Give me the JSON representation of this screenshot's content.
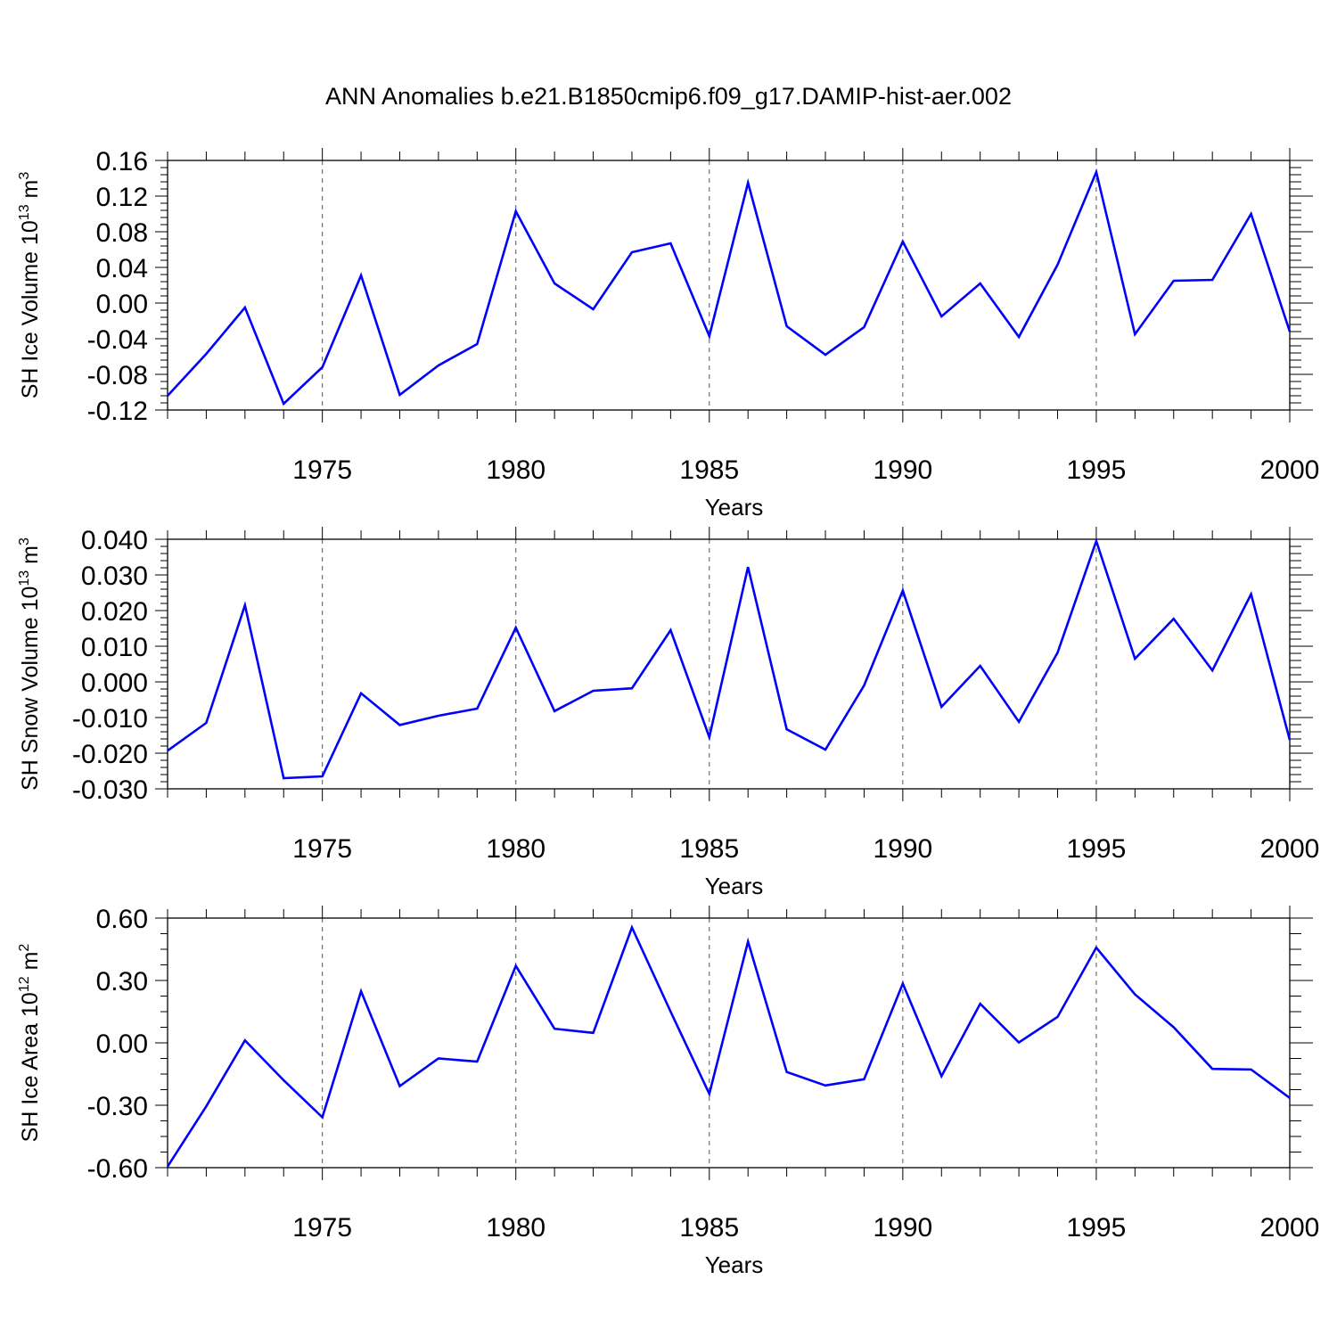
{
  "title": "ANN Anomalies b.e21.B1850cmip6.f09_g17.DAMIP-hist-aer.002",
  "colors": {
    "line": "#0000ff",
    "axis": "#000000",
    "grid": "#555555"
  },
  "chart_data": [
    {
      "type": "line",
      "ylabel": {
        "main": "SH Ice Volume 10",
        "sup": "13",
        "unit": " m",
        "unit_sup": "3"
      },
      "xlabel": "Years",
      "xlim": [
        1971,
        2000
      ],
      "ylim": [
        -0.12,
        0.16
      ],
      "yticks": [
        -0.12,
        -0.08,
        -0.04,
        0.0,
        0.04,
        0.08,
        0.12,
        0.16
      ],
      "yticklabels": [
        "-0.12",
        "-0.08",
        "-0.04",
        "0.00",
        "0.04",
        "0.08",
        "0.12",
        "0.16"
      ],
      "xticks": [
        1975,
        1980,
        1985,
        1990,
        1995,
        2000
      ],
      "xticklabels": [
        "1975",
        "1980",
        "1985",
        "1990",
        "1995",
        "2000"
      ],
      "x": [
        1971,
        1972,
        1973,
        1974,
        1975,
        1976,
        1977,
        1978,
        1979,
        1980,
        1981,
        1982,
        1983,
        1984,
        1985,
        1986,
        1987,
        1988,
        1989,
        1990,
        1991,
        1992,
        1993,
        1994,
        1995,
        1996,
        1997,
        1998,
        1999,
        2000
      ],
      "series": [
        {
          "name": "SH Ice Volume",
          "values": [
            -0.104,
            -0.057,
            -0.005,
            -0.113,
            -0.072,
            0.031,
            -0.103,
            -0.07,
            -0.046,
            0.103,
            0.022,
            -0.007,
            0.057,
            0.067,
            -0.037,
            0.135,
            -0.026,
            -0.058,
            -0.027,
            0.069,
            -0.015,
            0.022,
            -0.038,
            0.043,
            0.147,
            -0.035,
            0.025,
            0.026,
            0.1,
            -0.032
          ]
        }
      ]
    },
    {
      "type": "line",
      "ylabel": {
        "main": "SH Snow Volume 10",
        "sup": "13",
        "unit": " m",
        "unit_sup": "3"
      },
      "xlabel": "Years",
      "xlim": [
        1971,
        2000
      ],
      "ylim": [
        -0.03,
        0.04
      ],
      "yticks": [
        -0.03,
        -0.02,
        -0.01,
        0.0,
        0.01,
        0.02,
        0.03,
        0.04
      ],
      "yticklabels": [
        "-0.030",
        "-0.020",
        "-0.010",
        "0.000",
        "0.010",
        "0.020",
        "0.030",
        "0.040"
      ],
      "xticks": [
        1975,
        1980,
        1985,
        1990,
        1995,
        2000
      ],
      "xticklabels": [
        "1975",
        "1980",
        "1985",
        "1990",
        "1995",
        "2000"
      ],
      "x": [
        1971,
        1972,
        1973,
        1974,
        1975,
        1976,
        1977,
        1978,
        1979,
        1980,
        1981,
        1982,
        1983,
        1984,
        1985,
        1986,
        1987,
        1988,
        1989,
        1990,
        1991,
        1992,
        1993,
        1994,
        1995,
        1996,
        1997,
        1998,
        1999,
        2000
      ],
      "series": [
        {
          "name": "SH Snow Volume",
          "values": [
            -0.0193,
            -0.0115,
            0.0215,
            -0.027,
            -0.0265,
            -0.0032,
            -0.0121,
            -0.0095,
            -0.0075,
            0.0152,
            -0.0082,
            -0.0025,
            -0.0018,
            0.0145,
            -0.0155,
            0.0322,
            -0.0133,
            -0.019,
            -0.001,
            0.0256,
            -0.007,
            0.0045,
            -0.0112,
            0.0082,
            0.0395,
            0.0065,
            0.0177,
            0.0032,
            0.0246,
            -0.0163
          ]
        }
      ]
    },
    {
      "type": "line",
      "ylabel": {
        "main": "SH Ice Area 10",
        "sup": "12",
        "unit": " m",
        "unit_sup": "2"
      },
      "xlabel": "Years",
      "xlim": [
        1971,
        2000
      ],
      "ylim": [
        -0.6,
        0.6
      ],
      "yticks": [
        -0.6,
        -0.3,
        0.0,
        0.3,
        0.6
      ],
      "yticklabels": [
        "-0.60",
        "-0.30",
        "0.00",
        "0.30",
        "0.60"
      ],
      "xticks": [
        1975,
        1980,
        1985,
        1990,
        1995,
        2000
      ],
      "xticklabels": [
        "1975",
        "1980",
        "1985",
        "1990",
        "1995",
        "2000"
      ],
      "x": [
        1971,
        1972,
        1973,
        1974,
        1975,
        1976,
        1977,
        1978,
        1979,
        1980,
        1981,
        1982,
        1983,
        1984,
        1985,
        1986,
        1987,
        1988,
        1989,
        1990,
        1991,
        1992,
        1993,
        1994,
        1995,
        1996,
        1997,
        1998,
        1999,
        2000
      ],
      "series": [
        {
          "name": "SH Ice Area",
          "values": [
            -0.595,
            -0.305,
            0.012,
            -0.18,
            -0.358,
            0.248,
            -0.208,
            -0.075,
            -0.09,
            0.37,
            0.068,
            0.048,
            0.555,
            0.15,
            -0.245,
            0.487,
            -0.14,
            -0.205,
            -0.175,
            0.285,
            -0.16,
            0.188,
            0.002,
            0.125,
            0.458,
            0.233,
            0.075,
            -0.125,
            -0.128,
            -0.265
          ]
        }
      ]
    }
  ]
}
